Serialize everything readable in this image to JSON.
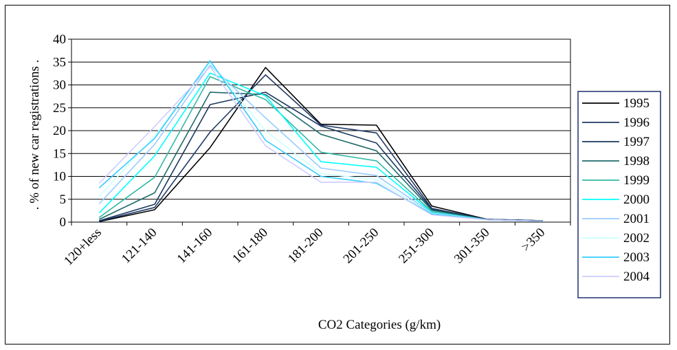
{
  "chart_data": {
    "type": "line",
    "title": "",
    "xlabel": "CO2 Categories (g/km)",
    "ylabel": ". % of new car registrations .",
    "ylim": [
      0,
      40
    ],
    "yticks": [
      0,
      5,
      10,
      15,
      20,
      25,
      30,
      35,
      40
    ],
    "grid": true,
    "legend_position": "right",
    "categories": [
      "120+less",
      "121-140",
      "141-160",
      "161-180",
      "181-200",
      "201-250",
      "251-300",
      "301-350",
      ">350"
    ],
    "series": [
      {
        "name": "1995",
        "color": "#000000",
        "values": [
          0.1,
          2.7,
          16.3,
          33.8,
          21.4,
          21.2,
          3.5,
          0.6,
          0.3
        ]
      },
      {
        "name": "1996",
        "color": "#1f3864",
        "values": [
          0.2,
          3.2,
          19.7,
          32.2,
          21.2,
          19.5,
          3.0,
          0.6,
          0.3
        ]
      },
      {
        "name": "1997",
        "color": "#17375e",
        "values": [
          0.3,
          3.9,
          25.7,
          28.4,
          21.0,
          17.3,
          2.8,
          0.6,
          0.3
        ]
      },
      {
        "name": "1998",
        "color": "#1f6b6b",
        "values": [
          0.6,
          6.4,
          28.4,
          27.9,
          19.2,
          15.6,
          2.6,
          0.5,
          0.2
        ]
      },
      {
        "name": "1999",
        "color": "#33b8a6",
        "values": [
          1.0,
          9.8,
          31.8,
          26.8,
          15.3,
          13.4,
          2.3,
          0.5,
          0.2
        ]
      },
      {
        "name": "2000",
        "color": "#00ffff",
        "values": [
          2.0,
          14.5,
          32.6,
          27.6,
          13.2,
          12.0,
          2.1,
          0.5,
          0.2
        ]
      },
      {
        "name": "2001",
        "color": "#99ccff",
        "values": [
          4.0,
          17.0,
          34.3,
          22.8,
          11.8,
          10.2,
          2.0,
          0.5,
          0.2
        ]
      },
      {
        "name": "2002",
        "color": "#ccffff",
        "values": [
          5.6,
          18.8,
          34.8,
          20.0,
          10.6,
          9.3,
          1.9,
          0.5,
          0.2
        ]
      },
      {
        "name": "2003",
        "color": "#33ccff",
        "values": [
          7.5,
          18.3,
          35.3,
          17.9,
          10.0,
          8.5,
          1.8,
          0.5,
          0.2
        ]
      },
      {
        "name": "2004",
        "color": "#ccccff",
        "values": [
          8.5,
          20.9,
          34.0,
          16.7,
          8.7,
          8.7,
          1.6,
          0.5,
          0.2
        ]
      }
    ]
  }
}
